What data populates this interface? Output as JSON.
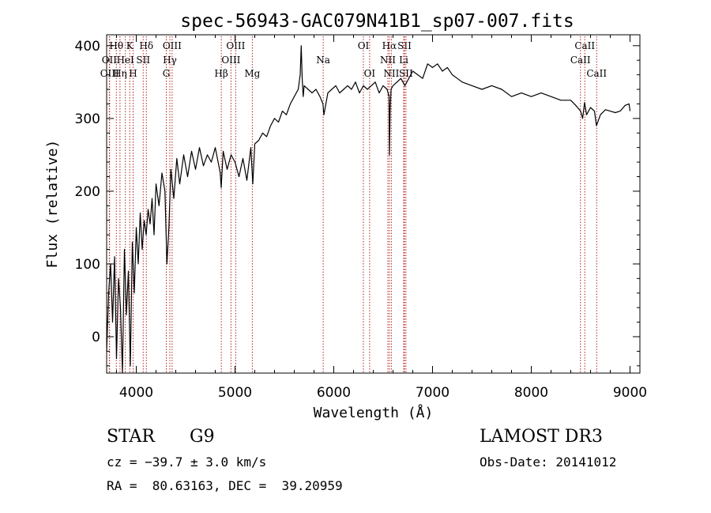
{
  "chart_data": {
    "type": "line",
    "title": "spec-56943-GAC079N41B1_sp07-007.fits",
    "xlabel": "Wavelength (Å)",
    "ylabel": "Flux (relative)",
    "xlim": [
      3700,
      9100
    ],
    "ylim": [
      -50,
      415
    ],
    "xticks": [
      4000,
      5000,
      6000,
      7000,
      8000,
      9000
    ],
    "yticks": [
      0,
      100,
      200,
      300,
      400
    ],
    "series": [
      {
        "name": "flux",
        "x": [
          3700,
          3720,
          3740,
          3760,
          3780,
          3800,
          3820,
          3840,
          3860,
          3880,
          3900,
          3920,
          3940,
          3960,
          3980,
          4000,
          4020,
          4040,
          4060,
          4080,
          4100,
          4120,
          4140,
          4160,
          4180,
          4200,
          4230,
          4260,
          4290,
          4310,
          4330,
          4350,
          4380,
          4410,
          4440,
          4480,
          4520,
          4560,
          4600,
          4640,
          4680,
          4720,
          4760,
          4800,
          4850,
          4860,
          4880,
          4920,
          4960,
          5000,
          5040,
          5080,
          5120,
          5160,
          5180,
          5200,
          5240,
          5280,
          5320,
          5360,
          5400,
          5440,
          5480,
          5520,
          5560,
          5600,
          5640,
          5660,
          5670,
          5680,
          5690,
          5700,
          5740,
          5780,
          5820,
          5860,
          5890,
          5900,
          5940,
          5980,
          6020,
          6060,
          6100,
          6140,
          6180,
          6220,
          6260,
          6300,
          6340,
          6380,
          6420,
          6460,
          6500,
          6540,
          6560,
          6564,
          6570,
          6580,
          6600,
          6640,
          6680,
          6720,
          6760,
          6800,
          6850,
          6900,
          6950,
          7000,
          7050,
          7100,
          7150,
          7200,
          7250,
          7300,
          7400,
          7500,
          7600,
          7700,
          7800,
          7900,
          8000,
          8100,
          8200,
          8300,
          8400,
          8450,
          8500,
          8520,
          8540,
          8560,
          8600,
          8640,
          8660,
          8700,
          8750,
          8800,
          8850,
          8900,
          8950,
          8990,
          9000
        ],
        "y": [
          -20,
          60,
          100,
          20,
          110,
          -30,
          80,
          40,
          -50,
          120,
          30,
          90,
          -40,
          130,
          60,
          150,
          100,
          170,
          120,
          160,
          140,
          175,
          155,
          190,
          140,
          210,
          180,
          225,
          200,
          100,
          150,
          230,
          190,
          245,
          210,
          250,
          220,
          255,
          230,
          260,
          235,
          250,
          240,
          260,
          225,
          205,
          255,
          230,
          250,
          240,
          220,
          245,
          215,
          260,
          210,
          265,
          270,
          280,
          275,
          290,
          300,
          295,
          310,
          305,
          320,
          330,
          340,
          360,
          400,
          355,
          330,
          345,
          340,
          335,
          340,
          330,
          320,
          305,
          335,
          340,
          345,
          335,
          340,
          345,
          340,
          350,
          335,
          345,
          340,
          345,
          350,
          335,
          345,
          340,
          330,
          250,
          310,
          340,
          345,
          350,
          355,
          345,
          355,
          365,
          360,
          355,
          375,
          370,
          375,
          365,
          370,
          360,
          355,
          350,
          345,
          340,
          345,
          340,
          330,
          335,
          330,
          335,
          330,
          325,
          325,
          318,
          310,
          300,
          322,
          305,
          315,
          310,
          290,
          305,
          312,
          310,
          308,
          310,
          318,
          320,
          310
        ]
      }
    ],
    "line_marks": [
      {
        "label": "Hθ",
        "wave": 3798,
        "row": 1
      },
      {
        "label": "OII",
        "wave": 3727,
        "row": 2
      },
      {
        "label": "OIII",
        "wave": 3730,
        "row": 3
      },
      {
        "label": "K",
        "wave": 3934,
        "row": 1
      },
      {
        "label": "HeI",
        "wave": 3889,
        "row": 2
      },
      {
        "label": "Hη",
        "wave": 3835,
        "row": 3
      },
      {
        "label": "Hδ",
        "wave": 4102,
        "row": 1
      },
      {
        "label": "SII",
        "wave": 4070,
        "row": 2
      },
      {
        "label": "H",
        "wave": 3968,
        "row": 3
      },
      {
        "label": "OIII",
        "wave": 4363,
        "row": 1
      },
      {
        "label": "Hγ",
        "wave": 4340,
        "row": 2
      },
      {
        "label": "G",
        "wave": 4304,
        "row": 3
      },
      {
        "label": "OIII",
        "wave": 5007,
        "row": 1
      },
      {
        "label": "OIII",
        "wave": 4959,
        "row": 2
      },
      {
        "label": "Hβ",
        "wave": 4861,
        "row": 3
      },
      {
        "label": "Mg",
        "wave": 5175,
        "row": 3
      },
      {
        "label": "Na",
        "wave": 5893,
        "row": 2
      },
      {
        "label": "OI",
        "wave": 6300,
        "row": 1
      },
      {
        "label": "OI",
        "wave": 6363,
        "row": 3
      },
      {
        "label": "Hα",
        "wave": 6563,
        "row": 1
      },
      {
        "label": "SII",
        "wave": 6716,
        "row": 1
      },
      {
        "label": "NII",
        "wave": 6548,
        "row": 2
      },
      {
        "label": "Li",
        "wave": 6708,
        "row": 2
      },
      {
        "label": "NII",
        "wave": 6583,
        "row": 3
      },
      {
        "label": "SII",
        "wave": 6731,
        "row": 3
      },
      {
        "label": "CaII",
        "wave": 8542,
        "row": 1
      },
      {
        "label": "CaII",
        "wave": 8498,
        "row": 2
      },
      {
        "label": "CaII",
        "wave": 8662,
        "row": 3
      }
    ]
  },
  "info": {
    "class": "STAR",
    "subclass": "G9",
    "survey": "LAMOST DR3",
    "cz": "cz = −39.7 ± 3.0 km/s",
    "obs_date": "Obs-Date: 20141012",
    "coords": "RA =  80.63163, DEC =  39.20959"
  },
  "colors": {
    "lines": "#b22222",
    "axis": "#000000",
    "spectrum": "#000000"
  }
}
